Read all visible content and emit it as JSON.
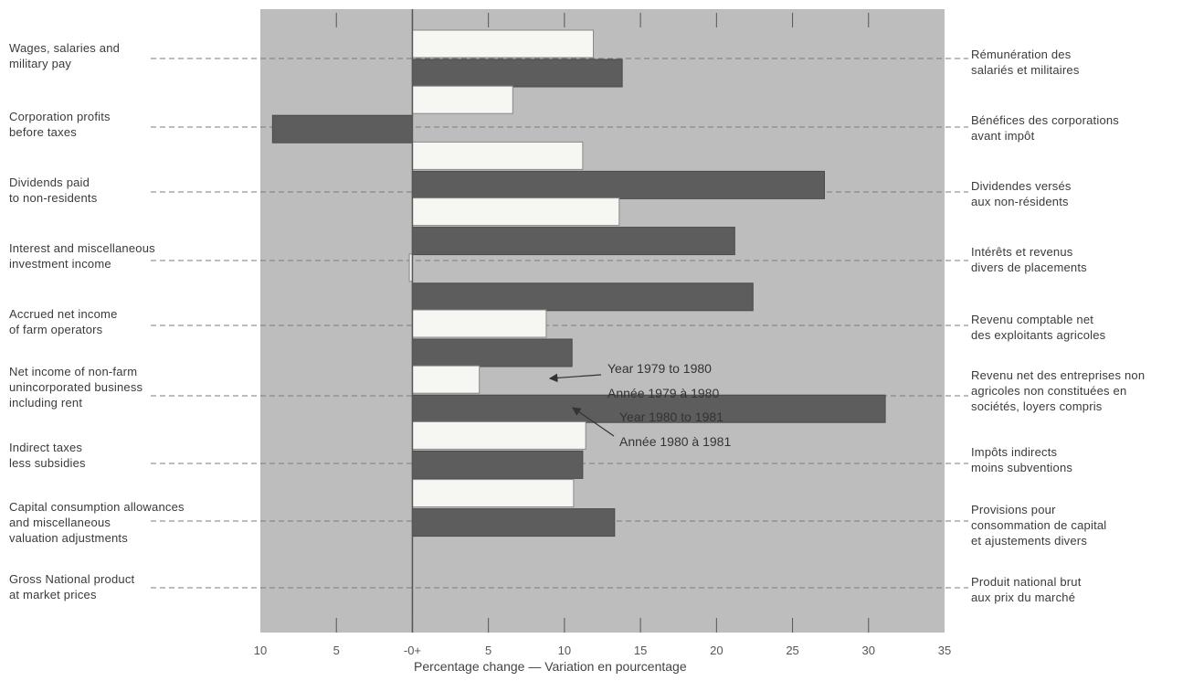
{
  "chart_data": {
    "type": "bar",
    "orientation": "horizontal",
    "xlabel": "Percentage change — Variation en pourcentage",
    "xlim": [
      -10,
      35
    ],
    "x_ticks": [
      -10,
      -5,
      0,
      5,
      10,
      15,
      20,
      25,
      30,
      35
    ],
    "x_tick_labels": [
      "10",
      "5",
      "-0+",
      "5",
      "10",
      "15",
      "20",
      "25",
      "30",
      "35"
    ],
    "categories": [
      {
        "en": "Wages, salaries and\nmilitary pay",
        "fr": "Rémunération des\nsalariés et militaires"
      },
      {
        "en": "Corporation profits\nbefore taxes",
        "fr": "Bénéfices des corporations\navant impôt"
      },
      {
        "en": "Dividends paid\nto non-residents",
        "fr": "Dividendes versés\naux non-résidents"
      },
      {
        "en": "Interest and miscellaneous\ninvestment income",
        "fr": "Intérêts et revenus\ndivers de placements"
      },
      {
        "en": "Accrued net income\nof farm operators",
        "fr": "Revenu comptable net\ndes exploitants agricoles"
      },
      {
        "en": "Net income of non-farm\nunincorporated business\nincluding rent",
        "fr": "Revenu net des entreprises non\nagricoles non constituées en\nsociétés, loyers compris"
      },
      {
        "en": "Indirect taxes\nless subsidies",
        "fr": "Impôts indirects\nmoins subventions"
      },
      {
        "en": "Capital consumption allowances\nand miscellaneous\nvaluation adjustments",
        "fr": "Provisions pour\nconsommation de capital\net ajustements divers"
      },
      {
        "en": "Gross National product\nat market prices",
        "fr": "Produit national brut\naux prix du marché"
      }
    ],
    "series": [
      {
        "name": "Year 1979 to 1980",
        "name_fr": "Année 1979 à 1980",
        "color": "#f6f6f2",
        "values": [
          11.9,
          6.6,
          11.2,
          13.6,
          -0.2,
          8.8,
          4.4,
          11.4,
          10.6
        ]
      },
      {
        "name": "Year 1980 to 1981",
        "name_fr": "Année 1980 à 1981",
        "color": "#5d5d5d",
        "values": [
          13.8,
          -9.2,
          27.1,
          21.2,
          22.4,
          10.5,
          31.1,
          11.2,
          13.3
        ]
      }
    ],
    "plot_background": "#bdbdbd",
    "frame_color": "#ffffff",
    "grid": false
  }
}
